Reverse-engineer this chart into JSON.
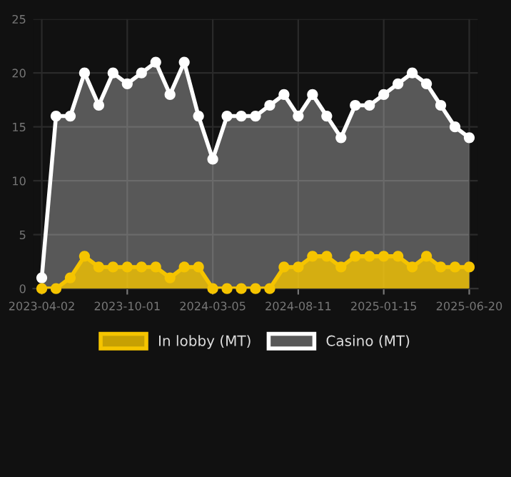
{
  "chart_data": {
    "type": "area",
    "categories": [
      "2023-04-02",
      null,
      null,
      null,
      null,
      null,
      "2023-10-01",
      null,
      null,
      null,
      null,
      null,
      "2024-03-05",
      null,
      null,
      null,
      null,
      null,
      "2024-08-11",
      null,
      null,
      null,
      null,
      null,
      "2025-01-15",
      null,
      null,
      null,
      null,
      null,
      "2025-06-20"
    ],
    "series": [
      {
        "name": "In lobby (MT)",
        "color": "#f5c400",
        "values": [
          0,
          0,
          1,
          3,
          2,
          2,
          2,
          2,
          2,
          1,
          2,
          2,
          0,
          0,
          0,
          0,
          0,
          2,
          2,
          3,
          3,
          2,
          3,
          3,
          3,
          3,
          2,
          3,
          2,
          2,
          2
        ]
      },
      {
        "name": "Casino (MT)",
        "color": "#ffffff",
        "values": [
          1,
          16,
          16,
          20,
          17,
          20,
          19,
          20,
          21,
          18,
          21,
          16,
          12,
          16,
          16,
          16,
          17,
          18,
          16,
          18,
          16,
          14,
          17,
          17,
          18,
          19,
          20,
          19,
          17,
          15,
          14
        ]
      }
    ],
    "ylim": [
      0,
      25
    ],
    "yticks": [
      0,
      5,
      10,
      15,
      20,
      25
    ],
    "grid": true,
    "legend": "bottom",
    "marker": "circle",
    "line_style": "solid"
  }
}
